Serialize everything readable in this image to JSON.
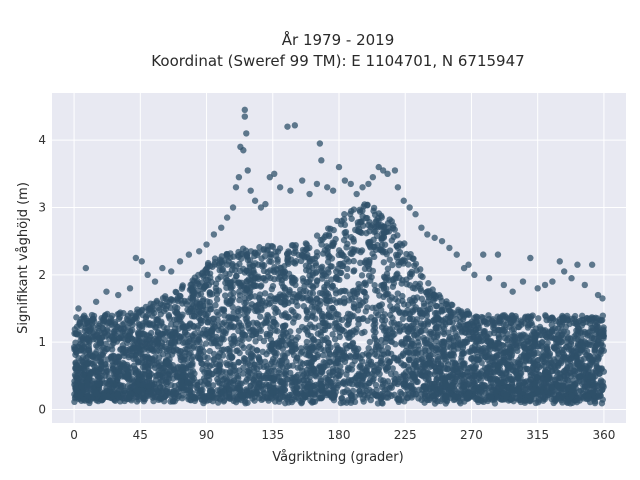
{
  "chart_data": {
    "type": "scatter",
    "title_lines": [
      "År 1979 - 2019",
      "Koordinat (Sweref 99 TM): E 1104701, N 6715947"
    ],
    "xlabel": "Vågriktning (grader)",
    "ylabel": "Signifikant våghöjd (m)",
    "xlim": [
      -15,
      375
    ],
    "ylim": [
      -0.2,
      4.7
    ],
    "xticks": [
      0,
      45,
      90,
      135,
      180,
      225,
      270,
      315,
      360
    ],
    "yticks": [
      0,
      1,
      2,
      3,
      4
    ],
    "grid": true,
    "background": "#e8e9f2",
    "marker_color": "#2f5069",
    "series": [
      {
        "points_note": "dense cloud sampled along envelope",
        "points": [
          [
            3,
            1.5
          ],
          [
            8,
            2.1
          ],
          [
            15,
            1.6
          ],
          [
            22,
            1.75
          ],
          [
            30,
            1.7
          ],
          [
            38,
            1.8
          ],
          [
            42,
            2.25
          ],
          [
            46,
            2.2
          ],
          [
            50,
            2.0
          ],
          [
            55,
            1.9
          ],
          [
            60,
            2.1
          ],
          [
            66,
            2.05
          ],
          [
            72,
            2.2
          ],
          [
            78,
            2.3
          ],
          [
            85,
            2.35
          ],
          [
            90,
            2.45
          ],
          [
            95,
            2.6
          ],
          [
            100,
            2.7
          ],
          [
            104,
            2.85
          ],
          [
            108,
            3.0
          ],
          [
            110,
            3.3
          ],
          [
            112,
            3.45
          ],
          [
            113,
            3.9
          ],
          [
            115,
            3.85
          ],
          [
            116,
            4.45
          ],
          [
            116,
            4.35
          ],
          [
            117,
            4.1
          ],
          [
            118,
            3.55
          ],
          [
            120,
            3.25
          ],
          [
            123,
            3.1
          ],
          [
            127,
            3.0
          ],
          [
            130,
            3.05
          ],
          [
            133,
            3.45
          ],
          [
            136,
            3.5
          ],
          [
            140,
            3.3
          ],
          [
            145,
            4.2
          ],
          [
            147,
            3.25
          ],
          [
            150,
            4.22
          ],
          [
            155,
            3.4
          ],
          [
            160,
            3.2
          ],
          [
            165,
            3.35
          ],
          [
            167,
            3.95
          ],
          [
            168,
            3.7
          ],
          [
            172,
            3.3
          ],
          [
            176,
            3.25
          ],
          [
            180,
            3.6
          ],
          [
            184,
            3.4
          ],
          [
            188,
            3.35
          ],
          [
            192,
            3.2
          ],
          [
            196,
            3.3
          ],
          [
            200,
            3.35
          ],
          [
            203,
            3.45
          ],
          [
            207,
            3.6
          ],
          [
            210,
            3.55
          ],
          [
            213,
            3.5
          ],
          [
            218,
            3.55
          ],
          [
            220,
            3.3
          ],
          [
            224,
            3.1
          ],
          [
            228,
            3.0
          ],
          [
            232,
            2.9
          ],
          [
            236,
            2.7
          ],
          [
            240,
            2.6
          ],
          [
            245,
            2.55
          ],
          [
            250,
            2.5
          ],
          [
            255,
            2.4
          ],
          [
            260,
            2.3
          ],
          [
            265,
            2.1
          ],
          [
            268,
            2.15
          ],
          [
            272,
            2.0
          ],
          [
            278,
            2.3
          ],
          [
            282,
            1.95
          ],
          [
            288,
            2.3
          ],
          [
            292,
            1.85
          ],
          [
            298,
            1.75
          ],
          [
            305,
            1.9
          ],
          [
            310,
            2.25
          ],
          [
            315,
            1.8
          ],
          [
            320,
            1.85
          ],
          [
            325,
            1.9
          ],
          [
            330,
            2.2
          ],
          [
            333,
            2.05
          ],
          [
            338,
            1.95
          ],
          [
            342,
            2.15
          ],
          [
            347,
            1.85
          ],
          [
            352,
            2.15
          ],
          [
            356,
            1.7
          ],
          [
            359,
            1.65
          ]
        ]
      }
    ]
  }
}
